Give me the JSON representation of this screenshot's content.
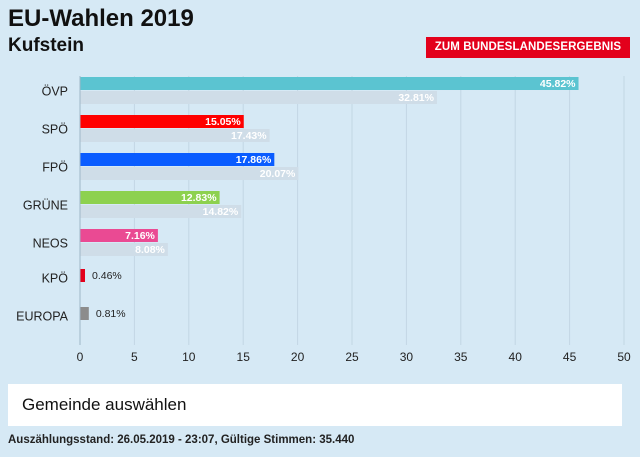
{
  "header": {
    "title": "EU-Wahlen 2019",
    "subtitle": "Kufstein",
    "result_button": "ZUM BUNDESLANDESERGEBNIS"
  },
  "select": {
    "label": "Gemeinde auswählen"
  },
  "footer": {
    "status": "Auszählungsstand: 26.05.2019 - 23:07, Gültige Stimmen: 35.440"
  },
  "colors": {
    "background": "#d6e9f5",
    "accent_red": "#e3001b",
    "previous_bar": "#cfdde8"
  },
  "chart_data": {
    "type": "bar",
    "orientation": "horizontal",
    "title": "EU-Wahlen 2019",
    "subtitle": "Kufstein",
    "xlim": [
      0,
      50
    ],
    "xticks": [
      0,
      5,
      10,
      15,
      20,
      25,
      30,
      35,
      40,
      45,
      50
    ],
    "grid": true,
    "categories": [
      "ÖVP",
      "SPÖ",
      "FPÖ",
      "GRÜNE",
      "NEOS",
      "KPÖ",
      "EUROPA"
    ],
    "series": [
      {
        "name": "2019",
        "values": [
          45.82,
          15.05,
          17.86,
          12.83,
          7.16,
          0.46,
          0.81
        ],
        "labels": [
          "45.82%",
          "15.05%",
          "17.86%",
          "12.83%",
          "7.16%",
          "0.46%",
          "0.81%"
        ],
        "colors": [
          "#5bc4d1",
          "#ff0000",
          "#0a5cff",
          "#8dd14f",
          "#ea4a93",
          "#e3001b",
          "#8c8c8c"
        ]
      },
      {
        "name": "previous",
        "values": [
          32.81,
          17.43,
          20.07,
          14.82,
          8.08,
          null,
          null
        ],
        "labels": [
          "32.81%",
          "17.43%",
          "20.07%",
          "14.82%",
          "8.08%",
          null,
          null
        ],
        "color": "#cfdde8"
      }
    ]
  }
}
